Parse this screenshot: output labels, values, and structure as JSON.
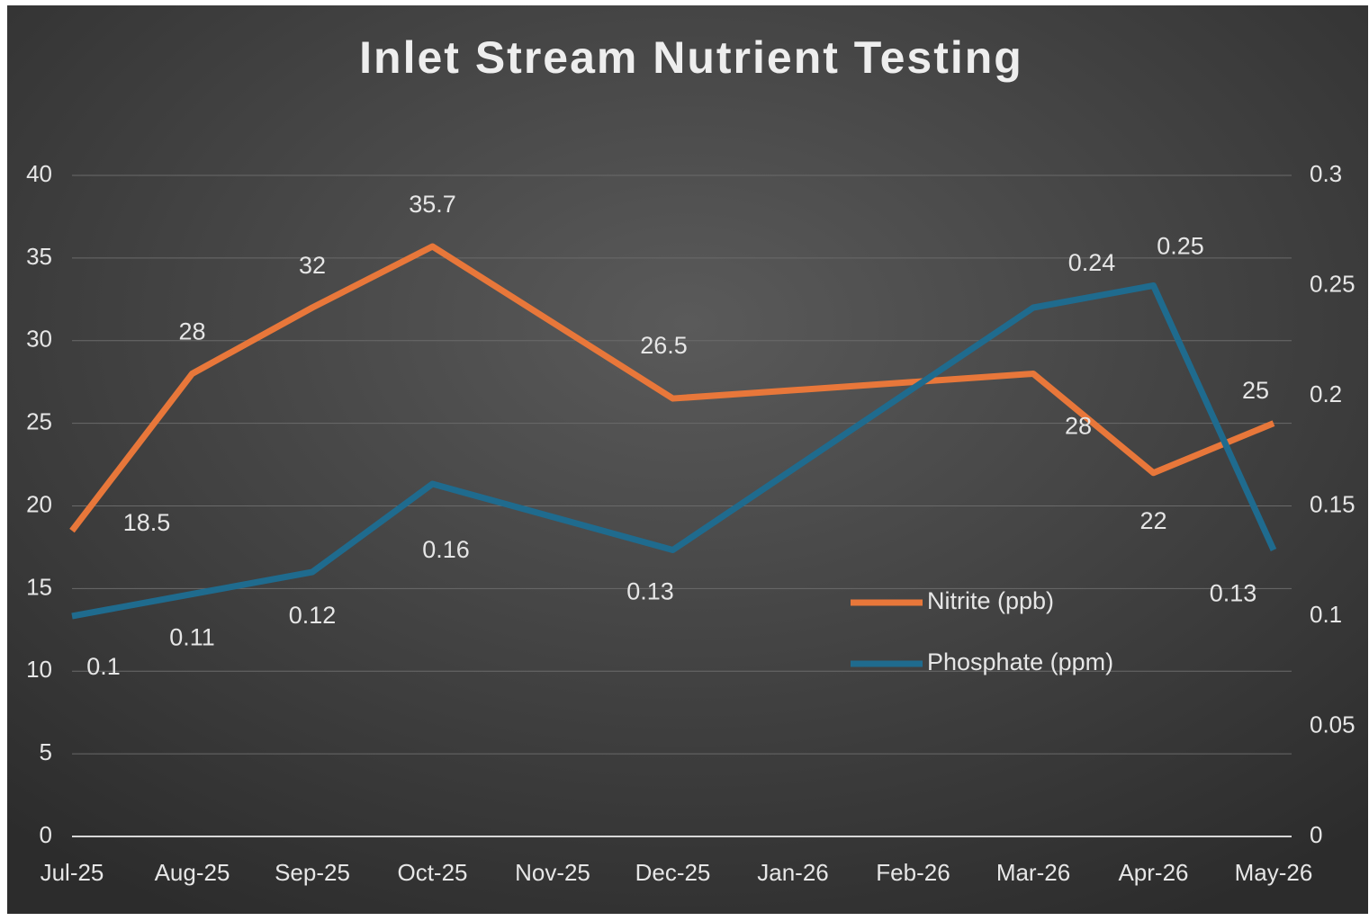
{
  "chart_data": {
    "type": "line",
    "title": "Inlet Stream Nutrient Testing",
    "xticks": [
      "Jul-25",
      "Aug-25",
      "Sep-25",
      "Oct-25",
      "Nov-25",
      "Dec-25",
      "Jan-26",
      "Feb-26",
      "Mar-26",
      "Apr-26",
      "May-26"
    ],
    "x": [
      "Jul-25",
      "Aug-25",
      "Sep-25",
      "Oct-25",
      "Dec-25",
      "Mar-26",
      "Apr-26",
      "May-26"
    ],
    "series": [
      {
        "name": "Nitrite (ppb)",
        "color": "#e8773a",
        "values": [
          18.5,
          28,
          32,
          35.7,
          26.5,
          28,
          22,
          25
        ]
      },
      {
        "name": "Phosphate (ppm)",
        "color": "#1f6b8e",
        "axis": "y2",
        "values": [
          0.1,
          0.11,
          0.12,
          0.16,
          0.13,
          0.24,
          0.25,
          0.13
        ]
      }
    ],
    "ylim": [
      0,
      40
    ],
    "yticks": [
      0,
      5,
      10,
      15,
      20,
      25,
      30,
      35,
      40
    ],
    "y2lim": [
      0,
      0.3
    ],
    "y2ticks": [
      0,
      0.05,
      0.1,
      0.15,
      0.2,
      0.25,
      0.3
    ],
    "grid": true
  }
}
